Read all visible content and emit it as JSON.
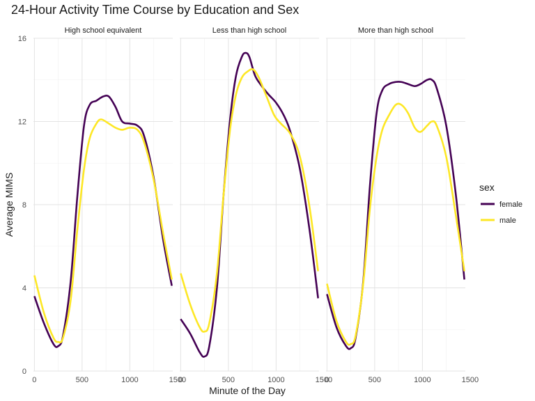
{
  "chart_data": {
    "type": "line",
    "title": "24-Hour Activity Time Course by Education and Sex",
    "xlabel": "Minute of the Day",
    "ylabel": "Average MIMS",
    "xlim": [
      -10,
      1450
    ],
    "ylim": [
      0,
      16
    ],
    "x_ticks": [
      0,
      500,
      1000,
      1500
    ],
    "x_tick_labels": [
      "0",
      "500",
      "1000",
      "1500"
    ],
    "y_ticks": [
      0,
      4,
      8,
      12,
      16
    ],
    "y_tick_labels": [
      "0",
      "4",
      "8",
      "12",
      "16"
    ],
    "legend": {
      "title": "sex",
      "position": "right",
      "entries": [
        "female",
        "male"
      ]
    },
    "series_colors": {
      "female": "#440154",
      "male": "#FDE725"
    },
    "grid": true,
    "panels": [
      {
        "label": "High school equivalent",
        "series": [
          {
            "name": "female",
            "x": [
              0,
              100,
              200,
              250,
              300,
              380,
              450,
              520,
              580,
              650,
              720,
              780,
              850,
              920,
              1000,
              1080,
              1150,
              1250,
              1350,
              1440
            ],
            "y": [
              3.6,
              2.3,
              1.3,
              1.2,
              1.7,
              4.3,
              8.4,
              11.8,
              12.8,
              13.0,
              13.2,
              13.2,
              12.7,
              12.0,
              11.9,
              11.8,
              11.3,
              9.3,
              6.3,
              4.1
            ]
          },
          {
            "name": "male",
            "x": [
              0,
              100,
              200,
              250,
              300,
              380,
              450,
              520,
              580,
              650,
              700,
              780,
              850,
              920,
              1000,
              1080,
              1150,
              1250,
              1350,
              1440
            ],
            "y": [
              4.6,
              2.8,
              1.6,
              1.4,
              1.6,
              3.4,
              6.8,
              9.7,
              11.2,
              11.9,
              12.1,
              11.9,
              11.7,
              11.6,
              11.7,
              11.6,
              11.0,
              9.2,
              6.6,
              4.4
            ]
          }
        ]
      },
      {
        "label": "Less than high school",
        "series": [
          {
            "name": "female",
            "x": [
              0,
              100,
              200,
              250,
              300,
              380,
              450,
              520,
              580,
              640,
              680,
              720,
              780,
              850,
              920,
              1000,
              1080,
              1150,
              1250,
              1350,
              1440
            ],
            "y": [
              2.5,
              1.8,
              0.9,
              0.7,
              1.2,
              4.0,
              8.5,
              12.2,
              14.2,
              15.1,
              15.3,
              15.1,
              14.2,
              13.7,
              13.3,
              12.9,
              12.3,
              11.5,
              9.7,
              6.8,
              3.5
            ]
          },
          {
            "name": "male",
            "x": [
              0,
              100,
              200,
              250,
              300,
              380,
              450,
              520,
              580,
              640,
              700,
              760,
              820,
              900,
              980,
              1050,
              1150,
              1250,
              1350,
              1440
            ],
            "y": [
              4.7,
              3.2,
              2.1,
              1.9,
              2.3,
              4.7,
              8.5,
              11.7,
              13.3,
              14.1,
              14.4,
              14.5,
              14.1,
              13.2,
              12.3,
              11.9,
              11.4,
              10.3,
              7.9,
              4.8
            ]
          }
        ]
      },
      {
        "label": "More than high school",
        "series": [
          {
            "name": "female",
            "x": [
              0,
              100,
              200,
              250,
              300,
              380,
              450,
              520,
              580,
              650,
              720,
              780,
              850,
              920,
              980,
              1050,
              1100,
              1150,
              1250,
              1350,
              1440
            ],
            "y": [
              3.7,
              2.1,
              1.2,
              1.1,
              1.6,
              4.3,
              8.9,
              12.4,
              13.5,
              13.8,
              13.9,
              13.9,
              13.8,
              13.7,
              13.8,
              14.0,
              14.0,
              13.6,
              11.8,
              8.5,
              4.4
            ]
          },
          {
            "name": "male",
            "x": [
              0,
              100,
              200,
              250,
              300,
              380,
              450,
              520,
              580,
              650,
              720,
              780,
              850,
              920,
              980,
              1050,
              1100,
              1150,
              1250,
              1350,
              1440
            ],
            "y": [
              4.2,
              2.4,
              1.4,
              1.3,
              1.7,
              4.2,
              7.8,
              10.3,
              11.6,
              12.3,
              12.8,
              12.8,
              12.4,
              11.7,
              11.5,
              11.8,
              12.0,
              11.8,
              10.3,
              7.5,
              4.8
            ]
          }
        ]
      }
    ]
  }
}
